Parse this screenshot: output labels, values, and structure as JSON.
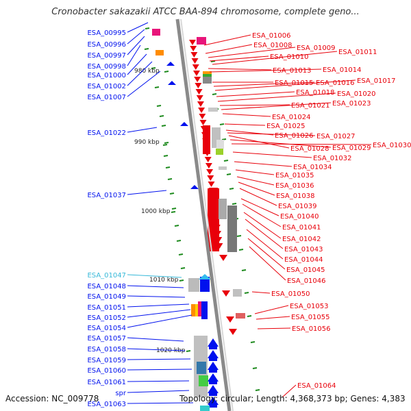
{
  "title": "Cronobacter sakazakii ATCC BAA-894 chromosome, complete geno...",
  "footer": {
    "accession": "Accession: NC_009778",
    "summary": "Topology: circular; Length: 4,368,373 bp; Genes: 4,383"
  },
  "ruler": {
    "ticks": [
      "980 kbp",
      "990 kbp",
      "1000 kbp",
      "1010 kbp",
      "1020 kbp"
    ]
  },
  "colors": {
    "forward_gene": "#e8000a",
    "reverse_gene": "#0011ee",
    "highlight_label": "#35b8d8",
    "backbone": "#8a8a8a",
    "gc_skew": "#1d8a1d"
  },
  "genes_left": [
    {
      "label": "ESA_00995"
    },
    {
      "label": "ESA_00996"
    },
    {
      "label": "ESA_00997"
    },
    {
      "label": "ESA_00998"
    },
    {
      "label": "ESA_01000"
    },
    {
      "label": "ESA_01002"
    },
    {
      "label": "ESA_01007"
    },
    {
      "label": "ESA_01022"
    },
    {
      "label": "ESA_01037"
    },
    {
      "label": "ESA_01047",
      "highlight": true
    },
    {
      "label": "ESA_01048"
    },
    {
      "label": "ESA_01049"
    },
    {
      "label": "ESA_01051"
    },
    {
      "label": "ESA_01052"
    },
    {
      "label": "ESA_01054"
    },
    {
      "label": "ESA_01057"
    },
    {
      "label": "ESA_01058"
    },
    {
      "label": "ESA_01059"
    },
    {
      "label": "ESA_01060"
    },
    {
      "label": "ESA_01061"
    },
    {
      "label": "spr"
    },
    {
      "label": "ESA_01063"
    }
  ],
  "genes_right": [
    {
      "label": "ESA_01006"
    },
    {
      "label": "ESA_01008"
    },
    {
      "label": "ESA_01009"
    },
    {
      "label": "ESA_01010"
    },
    {
      "label": "ESA_01011"
    },
    {
      "label": "ESA_01013"
    },
    {
      "label": "ESA_01014"
    },
    {
      "label": "ESA_01015"
    },
    {
      "label": "ESA_01016"
    },
    {
      "label": "ESA_01017"
    },
    {
      "label": "ESA_01018"
    },
    {
      "label": "ESA_01020"
    },
    {
      "label": "ESA_01021"
    },
    {
      "label": "ESA_01023"
    },
    {
      "label": "ESA_01024"
    },
    {
      "label": "ESA_01025"
    },
    {
      "label": "ESA_01026"
    },
    {
      "label": "ESA_01027"
    },
    {
      "label": "ESA_01028"
    },
    {
      "label": "ESA_01029"
    },
    {
      "label": "ESA_01030"
    },
    {
      "label": "ESA_01032"
    },
    {
      "label": "ESA_01034"
    },
    {
      "label": "ESA_01035"
    },
    {
      "label": "ESA_01036"
    },
    {
      "label": "ESA_01038"
    },
    {
      "label": "ESA_01039"
    },
    {
      "label": "ESA_01040"
    },
    {
      "label": "ESA_01041"
    },
    {
      "label": "ESA_01042"
    },
    {
      "label": "ESA_01043"
    },
    {
      "label": "ESA_01044"
    },
    {
      "label": "ESA_01045"
    },
    {
      "label": "ESA_01046"
    },
    {
      "label": "ESA_01050"
    },
    {
      "label": "ESA_01053"
    },
    {
      "label": "ESA_01055"
    },
    {
      "label": "ESA_01056"
    },
    {
      "label": "ESA_01064"
    }
  ]
}
